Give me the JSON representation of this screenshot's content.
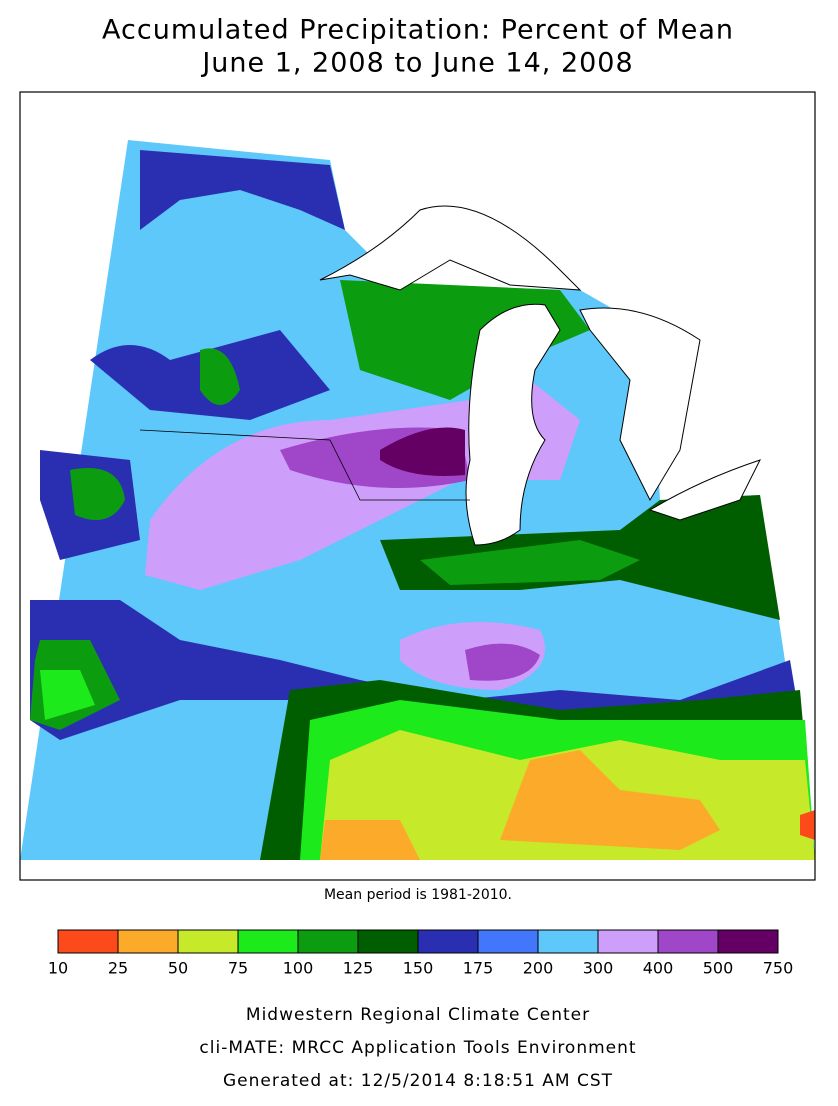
{
  "header": {
    "title": "Accumulated Precipitation: Percent of Mean",
    "subtitle": "June 1, 2008 to June 14, 2008"
  },
  "note": "Mean period is 1981-2010.",
  "legend": {
    "bins": [
      10,
      25,
      50,
      75,
      100,
      125,
      150,
      175,
      200,
      300,
      400,
      500,
      750
    ],
    "colors": [
      "#fc4a1b",
      "#fcaa2a",
      "#c6ea29",
      "#1cea1b",
      "#0c9c10",
      "#005e00",
      "#2a2fb2",
      "#4276fb",
      "#5ec8fb",
      "#ce9efb",
      "#a046c8",
      "#640064"
    ]
  },
  "footer": [
    "Midwestern Regional Climate Center",
    "cli-MATE: MRCC Application Tools Environment",
    "Generated at: 12/5/2014 8:18:51 AM CST"
  ]
}
